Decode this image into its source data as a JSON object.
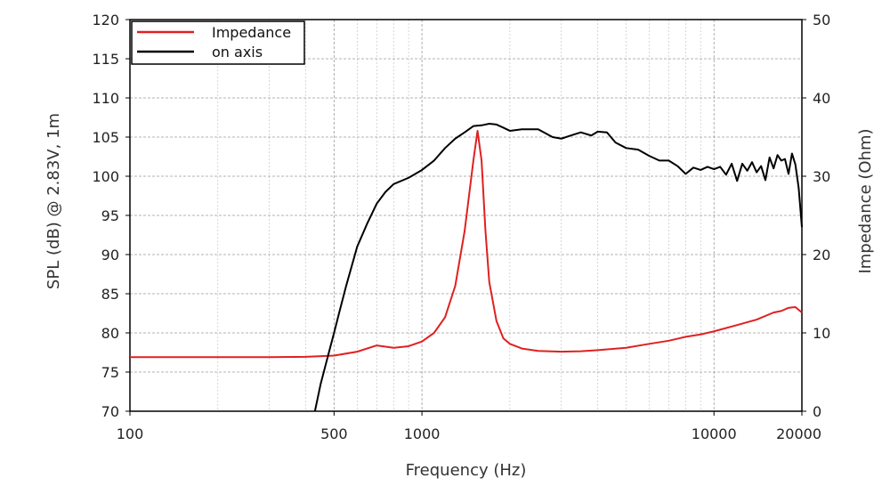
{
  "chart_data": {
    "type": "line",
    "xlabel": "Frequency (Hz)",
    "ylabel": "SPL (dB) @ 2.83V, 1m",
    "y2label": "Impedance (Ohm)",
    "x_scale": "log",
    "xlim": [
      100,
      20000
    ],
    "ylim": [
      70,
      120
    ],
    "y2lim": [
      0,
      50
    ],
    "x_tick_labels": [
      "100",
      "500",
      "1000",
      "10000",
      "20000"
    ],
    "x_tick_values": [
      100,
      500,
      1000,
      10000,
      20000
    ],
    "y_tick_values": [
      70,
      75,
      80,
      85,
      90,
      95,
      100,
      105,
      110,
      115,
      120
    ],
    "y2_tick_values": [
      0,
      10,
      20,
      30,
      40,
      50
    ],
    "grid": true,
    "legend_position": "top-left",
    "series": [
      {
        "name": "Impedance",
        "color": "#e02020",
        "axis": "right",
        "x": [
          100,
          200,
          300,
          400,
          500,
          600,
          700,
          800,
          900,
          1000,
          1100,
          1200,
          1300,
          1400,
          1500,
          1550,
          1600,
          1650,
          1700,
          1800,
          1900,
          2000,
          2200,
          2500,
          3000,
          3500,
          4000,
          5000,
          6000,
          7000,
          8000,
          9000,
          10000,
          12000,
          14000,
          16000,
          17000,
          18000,
          19000,
          20000
        ],
        "y": [
          6.9,
          6.9,
          6.9,
          6.95,
          7.1,
          7.6,
          8.4,
          8.1,
          8.3,
          8.9,
          10.0,
          12.0,
          16.0,
          23.0,
          32.0,
          35.8,
          32.0,
          23.0,
          16.5,
          11.5,
          9.3,
          8.6,
          8.0,
          7.7,
          7.6,
          7.65,
          7.8,
          8.1,
          8.6,
          9.0,
          9.5,
          9.8,
          10.2,
          11.0,
          11.7,
          12.6,
          12.8,
          13.2,
          13.3,
          12.6
        ]
      },
      {
        "name": "on axis",
        "color": "#000000",
        "axis": "left",
        "x": [
          430,
          450,
          480,
          500,
          520,
          550,
          600,
          650,
          700,
          750,
          800,
          900,
          1000,
          1100,
          1200,
          1300,
          1400,
          1500,
          1600,
          1700,
          1800,
          1900,
          2000,
          2200,
          2500,
          2800,
          3000,
          3300,
          3500,
          3800,
          4000,
          4300,
          4600,
          5000,
          5500,
          6000,
          6500,
          7000,
          7500,
          8000,
          8500,
          9000,
          9500,
          10000,
          10500,
          11000,
          11500,
          12000,
          12500,
          13000,
          13500,
          14000,
          14500,
          15000,
          15500,
          16000,
          16500,
          17000,
          17500,
          18000,
          18500,
          19000,
          19500,
          20000
        ],
        "y": [
          70.0,
          73.5,
          77.5,
          80.0,
          82.5,
          86.0,
          91.0,
          94.0,
          96.5,
          98.0,
          99.0,
          99.8,
          100.8,
          102.0,
          103.6,
          104.8,
          105.6,
          106.4,
          106.5,
          106.7,
          106.6,
          106.2,
          105.8,
          106.0,
          106.0,
          105.0,
          104.8,
          105.3,
          105.6,
          105.2,
          105.7,
          105.6,
          104.3,
          103.6,
          103.4,
          102.6,
          102.0,
          102.0,
          101.3,
          100.3,
          101.1,
          100.8,
          101.2,
          100.9,
          101.2,
          100.2,
          101.6,
          99.4,
          101.6,
          100.7,
          101.8,
          100.5,
          101.3,
          99.5,
          102.4,
          101.0,
          102.7,
          102.0,
          102.2,
          100.3,
          102.9,
          101.5,
          98.5,
          93.5
        ]
      }
    ]
  }
}
